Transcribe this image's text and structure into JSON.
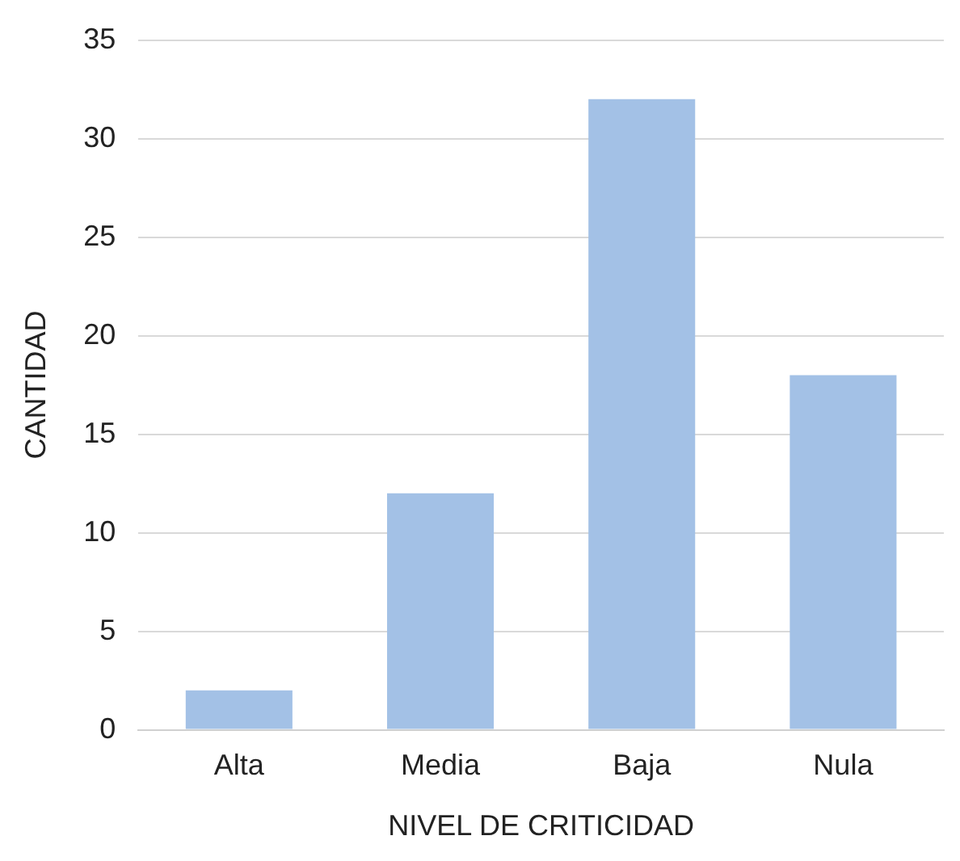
{
  "chart_data": {
    "type": "bar",
    "xlabel": "NIVEL DE CRITICIDAD",
    "ylabel": "CANTIDAD",
    "categories": [
      "Alta",
      "Media",
      "Baja",
      "Nula"
    ],
    "values": [
      2,
      12,
      32,
      18
    ],
    "color": "#a3c1e6",
    "ylim": [
      0,
      35
    ],
    "yticks": [
      0,
      5,
      10,
      15,
      20,
      25,
      30,
      35
    ],
    "grid": "y",
    "legend": false
  }
}
